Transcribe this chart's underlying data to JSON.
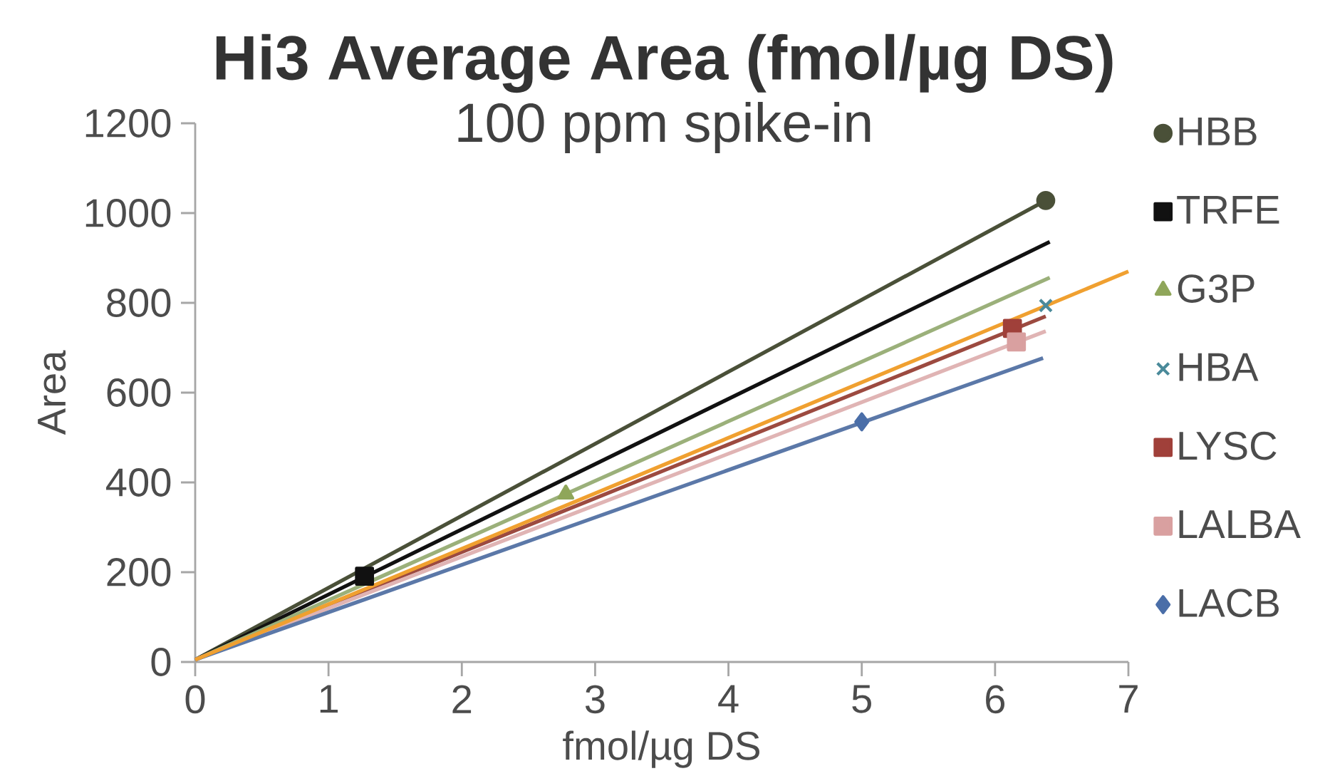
{
  "chart_data": {
    "type": "scatter",
    "title": "**Hi3 Average Area (fmol/µg DS)**",
    "subtitle": "100 ppm spike-in",
    "xlabel": "fmol/µg DS",
    "ylabel": "Area",
    "xlim": [
      0,
      7
    ],
    "ylim": [
      0,
      1200
    ],
    "xticks": [
      0,
      1,
      2,
      3,
      4,
      5,
      6,
      7
    ],
    "yticks": [
      0,
      200,
      400,
      600,
      800,
      1000,
      1200
    ],
    "legend": "right",
    "series": [
      {
        "name": "HBB",
        "marker": "circle",
        "color": "#4a5038",
        "x": [
          6.38
        ],
        "values": [
          1028
        ]
      },
      {
        "name": "TRFE",
        "marker": "square",
        "color": "#111111",
        "x": [
          1.27
        ],
        "values": [
          191
        ]
      },
      {
        "name": "G3P",
        "marker": "triangle",
        "color": "#8fa65a",
        "x": [
          2.78
        ],
        "values": [
          374
        ]
      },
      {
        "name": "HBA",
        "marker": "cross",
        "color": "#4a8a9a",
        "x": [
          6.38
        ],
        "values": [
          794
        ]
      },
      {
        "name": "LYSC",
        "marker": "square",
        "color": "#a0403a",
        "x": [
          6.13
        ],
        "values": [
          743
        ]
      },
      {
        "name": "LALBA",
        "marker": "square",
        "color": "#d9a0a0",
        "x": [
          6.16
        ],
        "values": [
          713
        ]
      },
      {
        "name": "LACB",
        "marker": "diamond",
        "color": "#4a6ea8",
        "x": [
          5.0
        ],
        "values": [
          535
        ]
      },
      {
        "type": "line",
        "marker": "none",
        "color": "#4a5038",
        "x": [
          0,
          6.38
        ],
        "values": [
          5,
          1028
        ]
      },
      {
        "type": "line",
        "marker": "none",
        "color": "#111111",
        "x": [
          0,
          6.41
        ],
        "values": [
          5,
          936
        ]
      },
      {
        "type": "line",
        "marker": "none",
        "color": "#9bb07a",
        "x": [
          0,
          6.41
        ],
        "values": [
          5,
          856
        ]
      },
      {
        "type": "line",
        "marker": "none",
        "color": "#9c4a40",
        "x": [
          0,
          6.38
        ],
        "values": [
          5,
          770
        ]
      },
      {
        "type": "line",
        "marker": "none",
        "color": "#e0b4b4",
        "x": [
          0,
          6.38
        ],
        "values": [
          5,
          737
        ]
      },
      {
        "type": "line",
        "marker": "none",
        "color": "#5b78a8",
        "x": [
          0,
          6.36
        ],
        "values": [
          5,
          677
        ]
      },
      {
        "type": "line",
        "marker": "none",
        "color": "#f0a030",
        "x": [
          0,
          7
        ],
        "values": [
          5,
          870
        ]
      }
    ]
  }
}
